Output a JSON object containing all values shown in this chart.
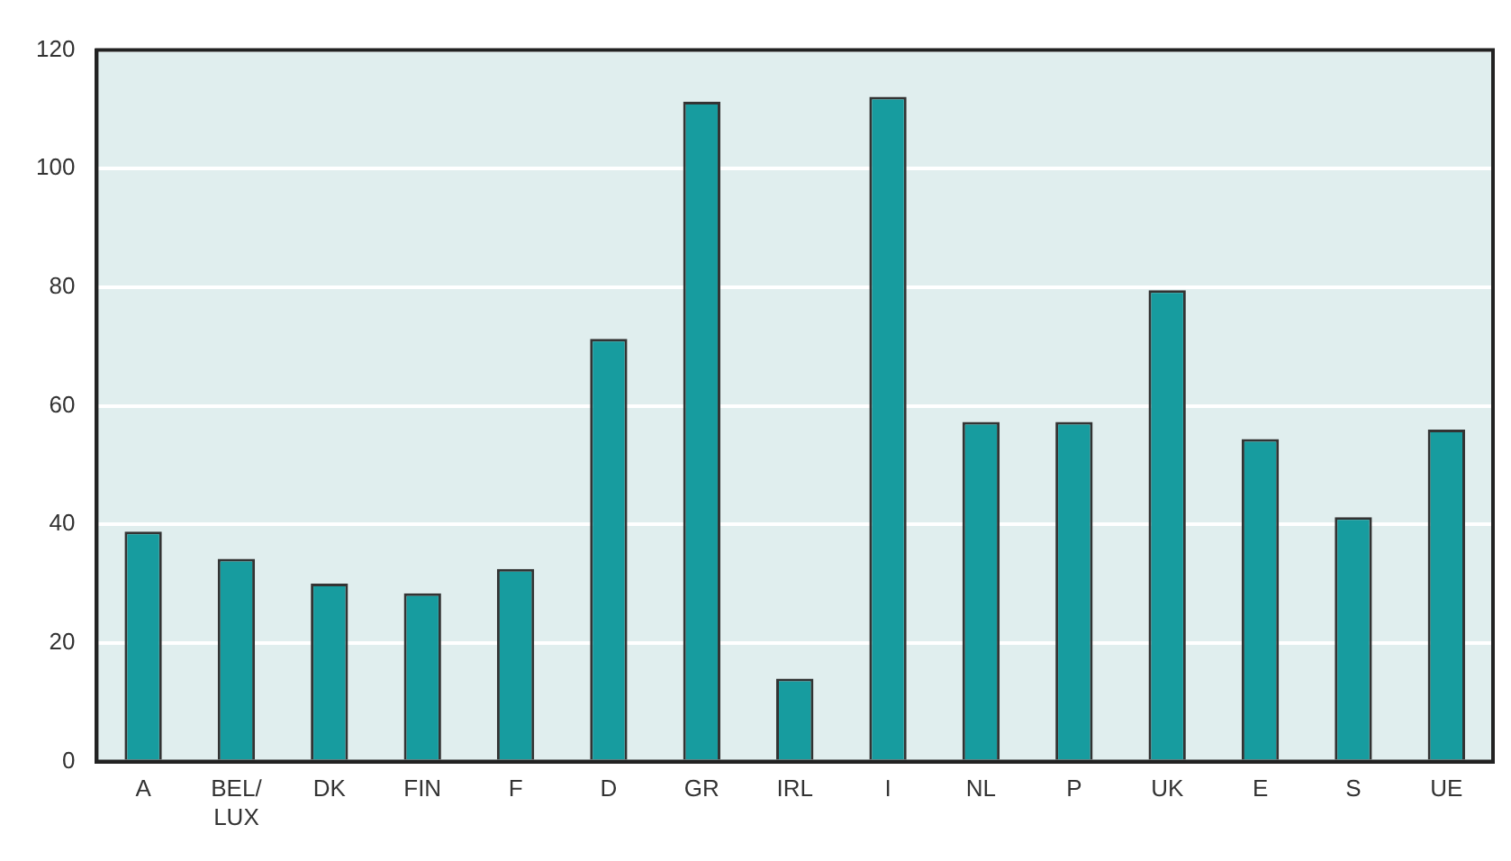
{
  "chart_data": {
    "type": "bar",
    "categories": [
      "A",
      "BEL/LUX",
      "DK",
      "FIN",
      "F",
      "D",
      "GR",
      "IRL",
      "I",
      "NL",
      "P",
      "UK",
      "E",
      "S",
      "UE"
    ],
    "values": [
      38.8,
      34.2,
      30.0,
      28.4,
      32.5,
      71.3,
      111.3,
      14.0,
      112.1,
      57.3,
      57.3,
      79.5,
      54.4,
      41.2,
      56.0
    ],
    "color": "#179c9f",
    "ylim": [
      0,
      120
    ],
    "yticks": [
      0,
      20,
      40,
      60,
      80,
      100,
      120
    ],
    "grid": "y",
    "legend": false
  }
}
